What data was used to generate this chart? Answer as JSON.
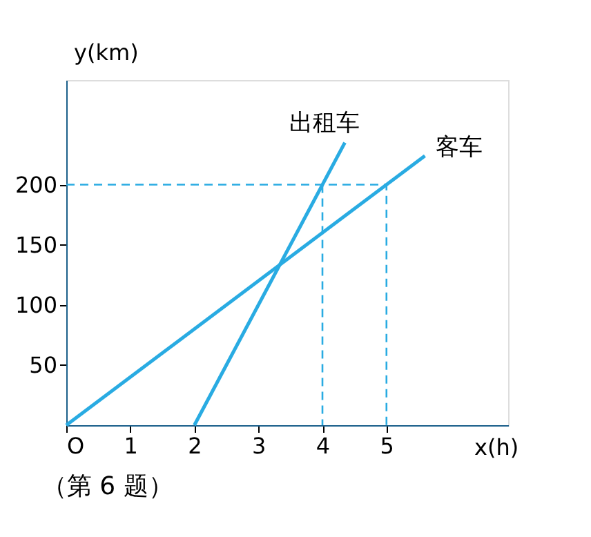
{
  "chart_data": {
    "type": "line",
    "xlabel": "x(h)",
    "ylabel": "y(km)",
    "xlim": [
      0,
      6.9
    ],
    "ylim": [
      0,
      287
    ],
    "xticks": [
      {
        "value": 0,
        "label": "O"
      },
      1,
      2,
      3,
      4,
      5
    ],
    "yticks": [
      50,
      100,
      150,
      200
    ],
    "grid": false,
    "series": [
      {
        "name": "出租车",
        "color": "#29abe2",
        "x": [
          2,
          4.35
        ],
        "values": [
          0,
          235
        ]
      },
      {
        "name": "客车",
        "color": "#29abe2",
        "x": [
          0,
          5.6
        ],
        "values": [
          0,
          224
        ]
      },
      {
        "color": "#29abe2",
        "line_style": "dashed",
        "x": [
          0,
          5,
          5
        ],
        "values": [
          200,
          200,
          0
        ]
      },
      {
        "color": "#29abe2",
        "line_style": "dashed",
        "x": [
          4,
          4
        ],
        "values": [
          200,
          0
        ]
      }
    ],
    "annotations": [
      "（第 6 题）"
    ]
  }
}
